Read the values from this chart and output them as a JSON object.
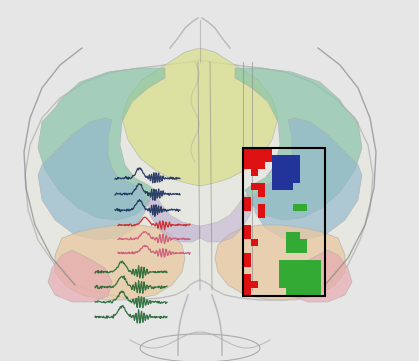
{
  "bg_color": "#e6e6e6",
  "brain_outline_color": "#999999",
  "colors": {
    "yellow_green": "#d8e088",
    "teal": "#88c4a8",
    "blue_gray": "#90b8cc",
    "lavender": "#c0b0d0",
    "peach": "#e8c8a0",
    "pink": "#e8a8b0",
    "gray_outline": "#aaaaaa",
    "dark_teal_texture": "#669988"
  },
  "trace_colors": {
    "dark_blue": "#1a2e5a",
    "red": "#cc2020",
    "pink": "#cc5577",
    "green": "#226633"
  },
  "pixel_colors": {
    "red": "#dd1111",
    "blue": "#223399",
    "green": "#33aa33"
  }
}
